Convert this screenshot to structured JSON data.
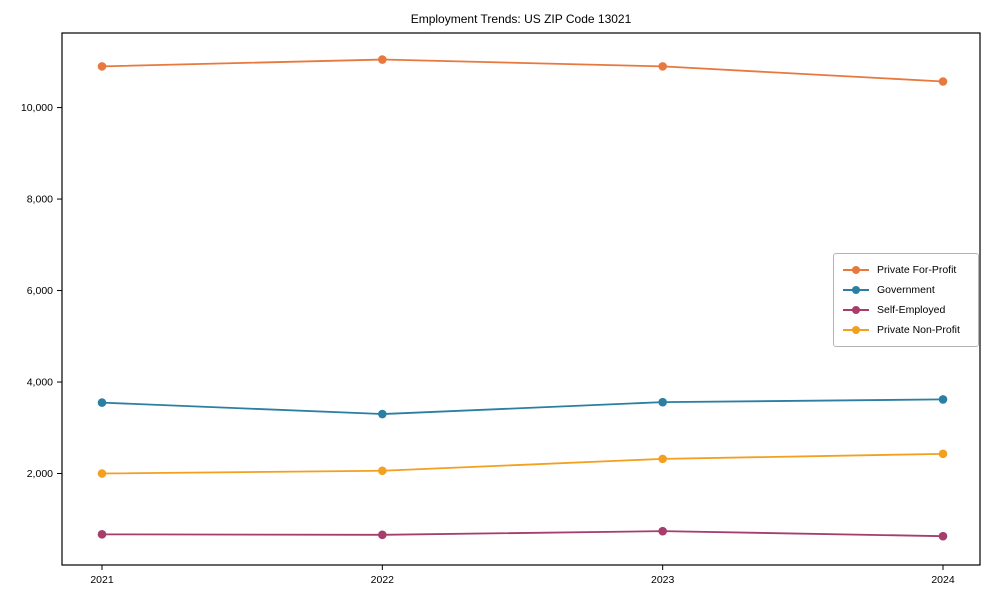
{
  "chart_data": {
    "type": "line",
    "title": "Employment Trends: US ZIP Code 13021",
    "xlabel": "",
    "ylabel": "",
    "x": [
      2021,
      2022,
      2023,
      2024
    ],
    "x_tick_labels": [
      "2021",
      "2022",
      "2023",
      "2024"
    ],
    "ylim": [
      0,
      11630
    ],
    "yticks": [
      2000,
      4000,
      6000,
      8000,
      10000
    ],
    "ytick_labels": [
      "2,000",
      "4,000",
      "6,000",
      "8,000",
      "10,000"
    ],
    "grid": false,
    "legend_position": "center right",
    "marker": "circle",
    "series": [
      {
        "name": "Private For-Profit",
        "color": "#e8793e",
        "values": [
          10900,
          11050,
          10900,
          10570
        ]
      },
      {
        "name": "Government",
        "color": "#2b7fa3",
        "values": [
          3550,
          3300,
          3560,
          3620
        ]
      },
      {
        "name": "Self-Employed",
        "color": "#a53d6d",
        "values": [
          670,
          660,
          740,
          630
        ]
      },
      {
        "name": "Private Non-Profit",
        "color": "#f3a01f",
        "values": [
          2000,
          2060,
          2320,
          2430
        ]
      }
    ]
  }
}
